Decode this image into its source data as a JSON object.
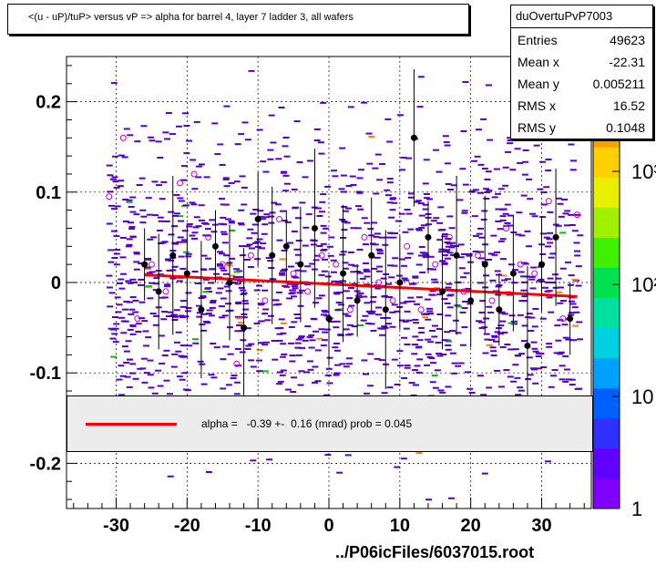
{
  "title": "<(u - uP)/tuP> versus   vP => alpha for barrel 4, layer 7 ladder 3, all wafers",
  "stats": {
    "name": "duOvertuPvP7003",
    "rows": [
      {
        "label": "Entries",
        "value": "49623"
      },
      {
        "label": "Mean x",
        "value": "-22.31"
      },
      {
        "label": "Mean y",
        "value": "0.005211"
      },
      {
        "label": "RMS x",
        "value": "16.52"
      },
      {
        "label": "RMS y",
        "value": "0.1048"
      }
    ]
  },
  "legend": {
    "text": "alpha =   -0.39 +-  0.16 (mrad) prob = 0.045",
    "line_color": "#ff0000"
  },
  "colors": {
    "histogram": "#5500cc",
    "profile_points": "#000000",
    "open_markers": "#cc00cc",
    "fit_line": "#ff0000"
  },
  "chart_data": {
    "type": "scatter",
    "title": "<(u - uP)/tuP> versus   vP => alpha for barrel 4, layer 7 ladder 3, all wafers",
    "xlabel": "../P06icFiles/6037015.root",
    "ylabel": "",
    "xlim": [
      -37,
      37
    ],
    "ylim": [
      -0.25,
      0.25
    ],
    "x_ticks": [
      -30,
      -20,
      -10,
      0,
      10,
      20,
      30
    ],
    "x_tick_labels": [
      "-30",
      "-20",
      "-10",
      "0",
      "10",
      "20",
      "30"
    ],
    "y_ticks": [
      -0.2,
      -0.1,
      0,
      0.1,
      0.2
    ],
    "y_tick_labels": [
      "-0.2",
      "-0.1",
      "0",
      "0.1",
      "0.2"
    ],
    "grid": true,
    "z_scale": "log",
    "z_tick_labels": [
      "1",
      "10",
      "10²",
      "10³"
    ],
    "fit_line": {
      "x": [
        -26,
        35
      ],
      "y": [
        0.0085,
        -0.0155
      ]
    },
    "profile_points": {
      "x": [
        -26,
        -24,
        -22,
        -20,
        -18,
        -16,
        -14,
        -12,
        -10,
        -8,
        -6,
        -4,
        -2,
        0,
        2,
        4,
        6,
        8,
        10,
        12,
        14,
        16,
        18,
        20,
        22,
        24,
        26,
        28,
        30,
        32,
        34
      ],
      "y": [
        0.02,
        -0.01,
        0.03,
        0.01,
        -0.03,
        0.04,
        0.0,
        -0.05,
        0.07,
        0.03,
        0.04,
        0.02,
        0.06,
        -0.04,
        0.01,
        -0.02,
        0.03,
        -0.03,
        0.0,
        0.16,
        0.05,
        -0.01,
        0.03,
        -0.02,
        0.02,
        -0.03,
        0.01,
        -0.07,
        0.02,
        0.05,
        -0.04
      ]
    },
    "open_markers": {
      "x": [
        -31,
        -29,
        -27,
        -25,
        -23,
        -21,
        -19,
        -17,
        -15,
        -13,
        -11,
        -9,
        -7,
        -5,
        -3,
        -1,
        1,
        3,
        5,
        7,
        9,
        11,
        13,
        15,
        17,
        19,
        21,
        23,
        25,
        27,
        29,
        31,
        33,
        35
      ],
      "y": [
        0.095,
        0.16,
        -0.04,
        0.02,
        -0.01,
        0.11,
        0.12,
        0.05,
        0.02,
        -0.09,
        0.03,
        -0.02,
        0.07,
        0.01,
        -0.01,
        0.03,
        0.02,
        -0.03,
        0.05,
        0.0,
        -0.02,
        0.04,
        -0.03,
        0.02,
        0.05,
        -0.01,
        0.03,
        -0.02,
        0.06,
        0.02,
        0.01,
        0.09,
        -0.04,
        0.075
      ]
    }
  }
}
